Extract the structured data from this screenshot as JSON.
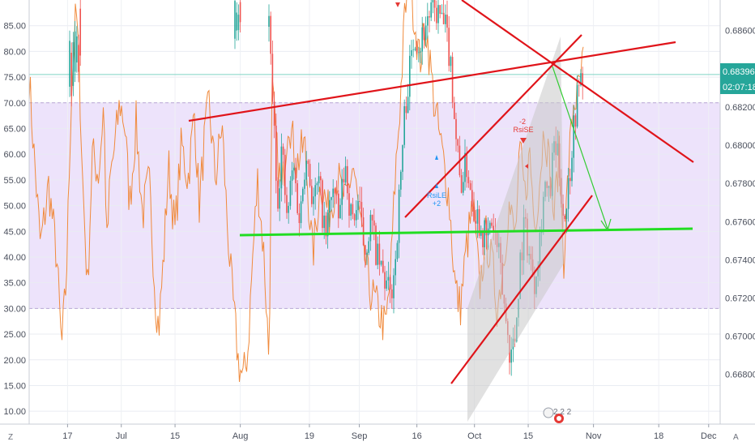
{
  "chart_data": {
    "type": "line",
    "title": "",
    "left_axis": {
      "ticks": [
        "85.00",
        "80.00",
        "75.00",
        "70.00",
        "65.00",
        "60.00",
        "55.00",
        "50.00",
        "45.00",
        "40.00",
        "35.00",
        "30.00",
        "25.00",
        "20.00",
        "15.00",
        "10.00"
      ],
      "values": [
        85,
        80,
        75,
        70,
        65,
        60,
        55,
        50,
        45,
        40,
        35,
        30,
        25,
        20,
        15,
        10
      ],
      "range": [
        7.5,
        90
      ]
    },
    "right_axis": {
      "ticks": [
        "0.68600",
        "0.68400",
        "0.68200",
        "0.68000",
        "0.67800",
        "0.67600",
        "0.67400",
        "0.67200",
        "0.67000",
        "0.66800"
      ],
      "values": [
        0.686,
        0.684,
        0.682,
        0.68,
        0.678,
        0.676,
        0.674,
        0.672,
        0.67,
        0.668
      ],
      "range": [
        0.6654,
        0.6876
      ]
    },
    "x_axis": {
      "ticks": [
        "17",
        "Jul",
        "15",
        "Aug",
        "19",
        "Sep",
        "16",
        "Oct",
        "15",
        "Nov",
        "18",
        "Dec"
      ],
      "positions": [
        "2021-06-17",
        "2021-07-01",
        "2021-07-15",
        "2021-08-01",
        "2021-08-19",
        "2021-09-01",
        "2021-09-16",
        "2021-10-01",
        "2021-10-15",
        "2021-11-01",
        "2021-11-18",
        "2021-12-01"
      ],
      "range": [
        "2021-06-07",
        "2021-12-04"
      ]
    },
    "grid": true,
    "rsi_band": {
      "lower": 30,
      "upper": 70,
      "fill": "#ede3fb"
    },
    "rsi_reference_line": 75.5,
    "current_price": "0.68396",
    "countdown": "02:07:18",
    "annotations": [
      {
        "text": "-2",
        "color": "#e53935"
      },
      {
        "text": "RsiSE",
        "color": "#e53935"
      },
      {
        "text": "RsiLE",
        "color": "#2196f3"
      },
      {
        "text": "+2",
        "color": "#2196f3"
      }
    ],
    "corner_labels": {
      "left": "Z",
      "right": "A"
    },
    "event_badge": "2 2 2",
    "colors": {
      "rsi_line": "#f08a3c",
      "candle_up": "#26a69a",
      "candle_down": "#ef5350",
      "red_lines": "#e0141a",
      "green_support": "#22dd22",
      "projection_arrow": "#33cc33",
      "channel_fill": "#c9c9c9",
      "price_badge": "#26a69a"
    }
  }
}
